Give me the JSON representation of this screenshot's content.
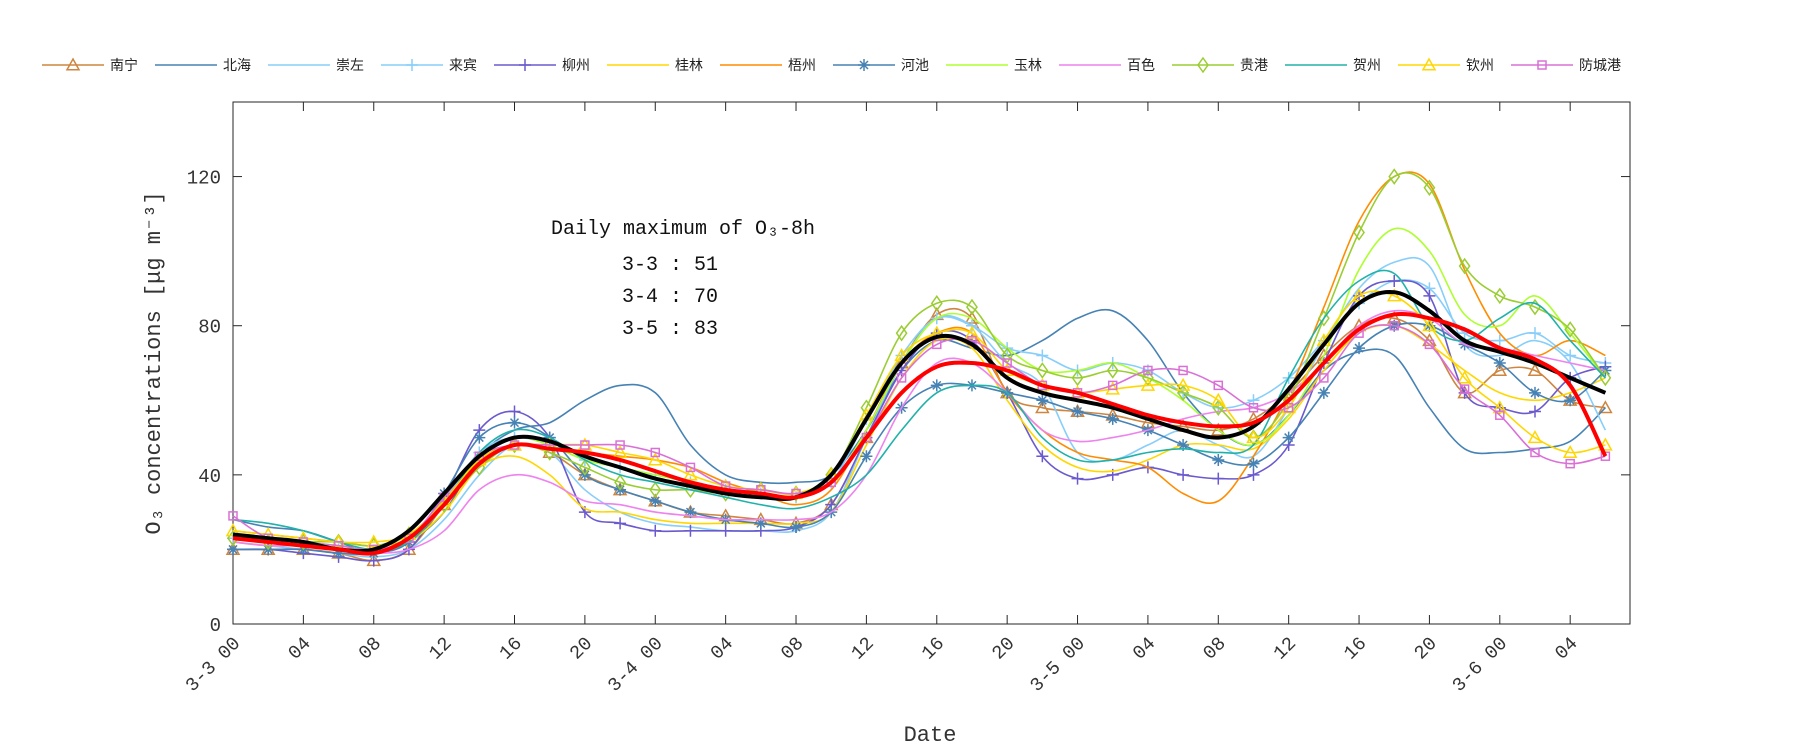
{
  "chart_data": {
    "type": "line",
    "xlabel": "Date",
    "ylabel": "O₃ concentrations [μg m⁻³]",
    "ylim": [
      0,
      140
    ],
    "xlim_hours_from_3-3_00": [
      0,
      79.4
    ],
    "x_hours": [
      0,
      2,
      4,
      6,
      8,
      10,
      12,
      14,
      16,
      18,
      20,
      22,
      24,
      26,
      28,
      30,
      32,
      34,
      36,
      38,
      40,
      42,
      44,
      46,
      48,
      50,
      52,
      54,
      56,
      58,
      60,
      62,
      64,
      66,
      68,
      70,
      72,
      74,
      76,
      78
    ],
    "x_ticks": [
      {
        "h": 0,
        "label": "3-3 00"
      },
      {
        "h": 4,
        "label": "04"
      },
      {
        "h": 8,
        "label": "08"
      },
      {
        "h": 12,
        "label": "12"
      },
      {
        "h": 16,
        "label": "16"
      },
      {
        "h": 20,
        "label": "20"
      },
      {
        "h": 24,
        "label": "3-4 00"
      },
      {
        "h": 28,
        "label": "04"
      },
      {
        "h": 32,
        "label": "08"
      },
      {
        "h": 36,
        "label": "12"
      },
      {
        "h": 40,
        "label": "16"
      },
      {
        "h": 44,
        "label": "20"
      },
      {
        "h": 48,
        "label": "3-5 00"
      },
      {
        "h": 52,
        "label": "04"
      },
      {
        "h": 56,
        "label": "08"
      },
      {
        "h": 60,
        "label": "12"
      },
      {
        "h": 64,
        "label": "16"
      },
      {
        "h": 68,
        "label": "20"
      },
      {
        "h": 72,
        "label": "3-6 00"
      },
      {
        "h": 76,
        "label": "04"
      }
    ],
    "y_ticks": [
      0,
      40,
      80,
      120
    ],
    "grid": false,
    "legend_placement": "top",
    "annotation": {
      "title": "Daily maximum of O₃-8h",
      "lines": [
        "3-3 : 51",
        "3-4 : 70",
        "3-5 : 83"
      ]
    },
    "series": [
      {
        "name": "南宁",
        "color": "#cd853f",
        "marker": "triangle",
        "values": [
          20,
          20,
          20,
          19,
          17,
          20,
          32,
          44,
          48,
          46,
          40,
          36,
          33,
          30,
          29,
          28,
          27,
          32,
          50,
          70,
          83,
          82,
          62,
          58,
          57,
          56,
          54,
          53,
          52,
          55,
          62,
          72,
          80,
          82,
          76,
          62,
          68,
          68,
          60,
          58
        ]
      },
      {
        "name": "北海",
        "color": "#4682b4",
        "marker": "none",
        "values": [
          28,
          26,
          25,
          22,
          19,
          22,
          30,
          45,
          52,
          54,
          60,
          64,
          62,
          48,
          40,
          38,
          38,
          40,
          52,
          68,
          76,
          74,
          72,
          76,
          82,
          84,
          76,
          62,
          52,
          48,
          56,
          68,
          73,
          72,
          58,
          47,
          46,
          47,
          49,
          58
        ]
      },
      {
        "name": "崇左",
        "color": "#87cefa",
        "marker": "none",
        "values": [
          22,
          21,
          20,
          19,
          18,
          20,
          28,
          40,
          48,
          46,
          36,
          30,
          27,
          26,
          25,
          25,
          25,
          30,
          50,
          70,
          82,
          80,
          70,
          64,
          46,
          44,
          48,
          52,
          48,
          45,
          58,
          75,
          90,
          97,
          96,
          75,
          72,
          76,
          70,
          52
        ]
      },
      {
        "name": "来宾",
        "color": "#87cefa",
        "marker": "plus",
        "values": [
          23,
          22,
          21,
          20,
          19,
          22,
          33,
          46,
          50,
          48,
          44,
          42,
          40,
          38,
          36,
          35,
          34,
          38,
          55,
          72,
          82,
          80,
          74,
          72,
          68,
          70,
          68,
          62,
          58,
          60,
          66,
          76,
          86,
          92,
          90,
          78,
          76,
          78,
          72,
          70
        ]
      },
      {
        "name": "柳州",
        "color": "#6a5acd",
        "marker": "plus",
        "values": [
          20,
          20,
          19,
          18,
          17,
          20,
          34,
          52,
          57,
          50,
          30,
          27,
          25,
          25,
          25,
          25,
          26,
          32,
          50,
          68,
          78,
          76,
          62,
          45,
          39,
          40,
          42,
          40,
          39,
          40,
          48,
          70,
          88,
          92,
          88,
          62,
          58,
          57,
          66,
          69
        ]
      },
      {
        "name": "桂林",
        "color": "#ffd700",
        "marker": "none",
        "values": [
          22,
          21,
          21,
          20,
          19,
          22,
          30,
          42,
          45,
          40,
          31,
          30,
          28,
          27,
          27,
          27,
          27,
          30,
          48,
          66,
          76,
          74,
          60,
          48,
          42,
          41,
          44,
          48,
          48,
          47,
          55,
          68,
          78,
          80,
          75,
          68,
          62,
          60,
          62,
          66
        ]
      },
      {
        "name": "梧州",
        "color": "#ff8c00",
        "marker": "none",
        "values": [
          25,
          24,
          23,
          22,
          21,
          23,
          33,
          44,
          48,
          47,
          46,
          45,
          44,
          42,
          38,
          35,
          32,
          36,
          52,
          70,
          78,
          78,
          62,
          52,
          46,
          44,
          42,
          35,
          33,
          45,
          62,
          85,
          108,
          120,
          118,
          95,
          78,
          72,
          76,
          72
        ]
      },
      {
        "name": "河池",
        "color": "#4682b4",
        "marker": "asterisk",
        "values": [
          20,
          20,
          20,
          19,
          19,
          22,
          35,
          50,
          54,
          50,
          40,
          36,
          33,
          30,
          28,
          27,
          26,
          30,
          45,
          58,
          64,
          64,
          62,
          60,
          57,
          55,
          52,
          48,
          44,
          43,
          50,
          62,
          74,
          80,
          80,
          75,
          70,
          62,
          60,
          68
        ]
      },
      {
        "name": "玉林",
        "color": "#adff2f",
        "marker": "none",
        "values": [
          24,
          23,
          22,
          21,
          20,
          24,
          32,
          45,
          50,
          48,
          44,
          42,
          40,
          38,
          36,
          35,
          34,
          38,
          52,
          70,
          82,
          82,
          74,
          68,
          68,
          70,
          66,
          60,
          52,
          48,
          56,
          72,
          95,
          106,
          100,
          83,
          80,
          88,
          78,
          66
        ]
      },
      {
        "name": "百色",
        "color": "#ee82ee",
        "marker": "none",
        "values": [
          22,
          21,
          21,
          20,
          19,
          20,
          25,
          36,
          40,
          38,
          33,
          32,
          30,
          29,
          28,
          28,
          28,
          30,
          40,
          58,
          70,
          70,
          62,
          52,
          49,
          50,
          52,
          55,
          57,
          58,
          62,
          70,
          80,
          84,
          82,
          75,
          74,
          72,
          70,
          68
        ]
      },
      {
        "name": "贵港",
        "color": "#9acd32",
        "marker": "diamond",
        "values": [
          23,
          22,
          22,
          22,
          21,
          24,
          32,
          42,
          48,
          46,
          42,
          38,
          36,
          36,
          35,
          36,
          35,
          40,
          58,
          78,
          86,
          85,
          72,
          68,
          66,
          68,
          66,
          62,
          58,
          50,
          60,
          82,
          105,
          120,
          117,
          96,
          88,
          85,
          79,
          66
        ]
      },
      {
        "name": "贺州",
        "color": "#20b2aa",
        "marker": "none",
        "values": [
          28,
          27,
          25,
          22,
          20,
          22,
          32,
          46,
          52,
          50,
          44,
          40,
          38,
          36,
          34,
          32,
          31,
          34,
          40,
          52,
          62,
          64,
          62,
          50,
          44,
          44,
          46,
          47,
          46,
          48,
          66,
          82,
          92,
          94,
          80,
          76,
          82,
          86,
          76,
          66
        ]
      },
      {
        "name": "钦州",
        "color": "#ffd700",
        "marker": "triangle",
        "values": [
          25,
          24,
          23,
          22,
          22,
          24,
          33,
          44,
          48,
          48,
          48,
          46,
          44,
          40,
          37,
          36,
          35,
          40,
          56,
          72,
          78,
          78,
          68,
          64,
          62,
          63,
          64,
          64,
          60,
          50,
          58,
          76,
          88,
          88,
          80,
          66,
          58,
          50,
          46,
          48
        ]
      },
      {
        "name": "防城港",
        "color": "#da70d6",
        "marker": "square",
        "values": [
          29,
          23,
          22,
          21,
          20,
          23,
          34,
          45,
          48,
          48,
          48,
          48,
          46,
          42,
          37,
          36,
          35,
          38,
          50,
          66,
          75,
          76,
          70,
          64,
          62,
          64,
          68,
          68,
          64,
          58,
          58,
          66,
          78,
          80,
          75,
          63,
          56,
          46,
          43,
          45
        ]
      },
      {
        "color": "#000000",
        "marker": "none",
        "bold": true,
        "values": [
          24,
          23,
          22,
          20,
          20,
          25,
          35,
          45,
          50,
          49,
          45,
          42,
          39,
          37,
          35,
          34,
          34,
          40,
          55,
          70,
          77,
          75,
          66,
          62,
          60,
          58,
          55,
          52,
          50,
          53,
          63,
          75,
          86,
          89,
          84,
          76,
          73,
          70,
          66,
          62
        ]
      },
      {
        "color": "#ff0000",
        "marker": "none",
        "bold": true,
        "values": [
          23,
          22,
          21,
          20,
          19,
          23,
          32,
          43,
          48,
          47,
          46,
          44,
          41,
          38,
          36,
          35,
          34,
          38,
          50,
          62,
          69,
          70,
          68,
          64,
          62,
          59,
          56,
          54,
          53,
          54,
          60,
          70,
          79,
          83,
          82,
          79,
          74,
          71,
          64,
          45
        ]
      }
    ]
  }
}
